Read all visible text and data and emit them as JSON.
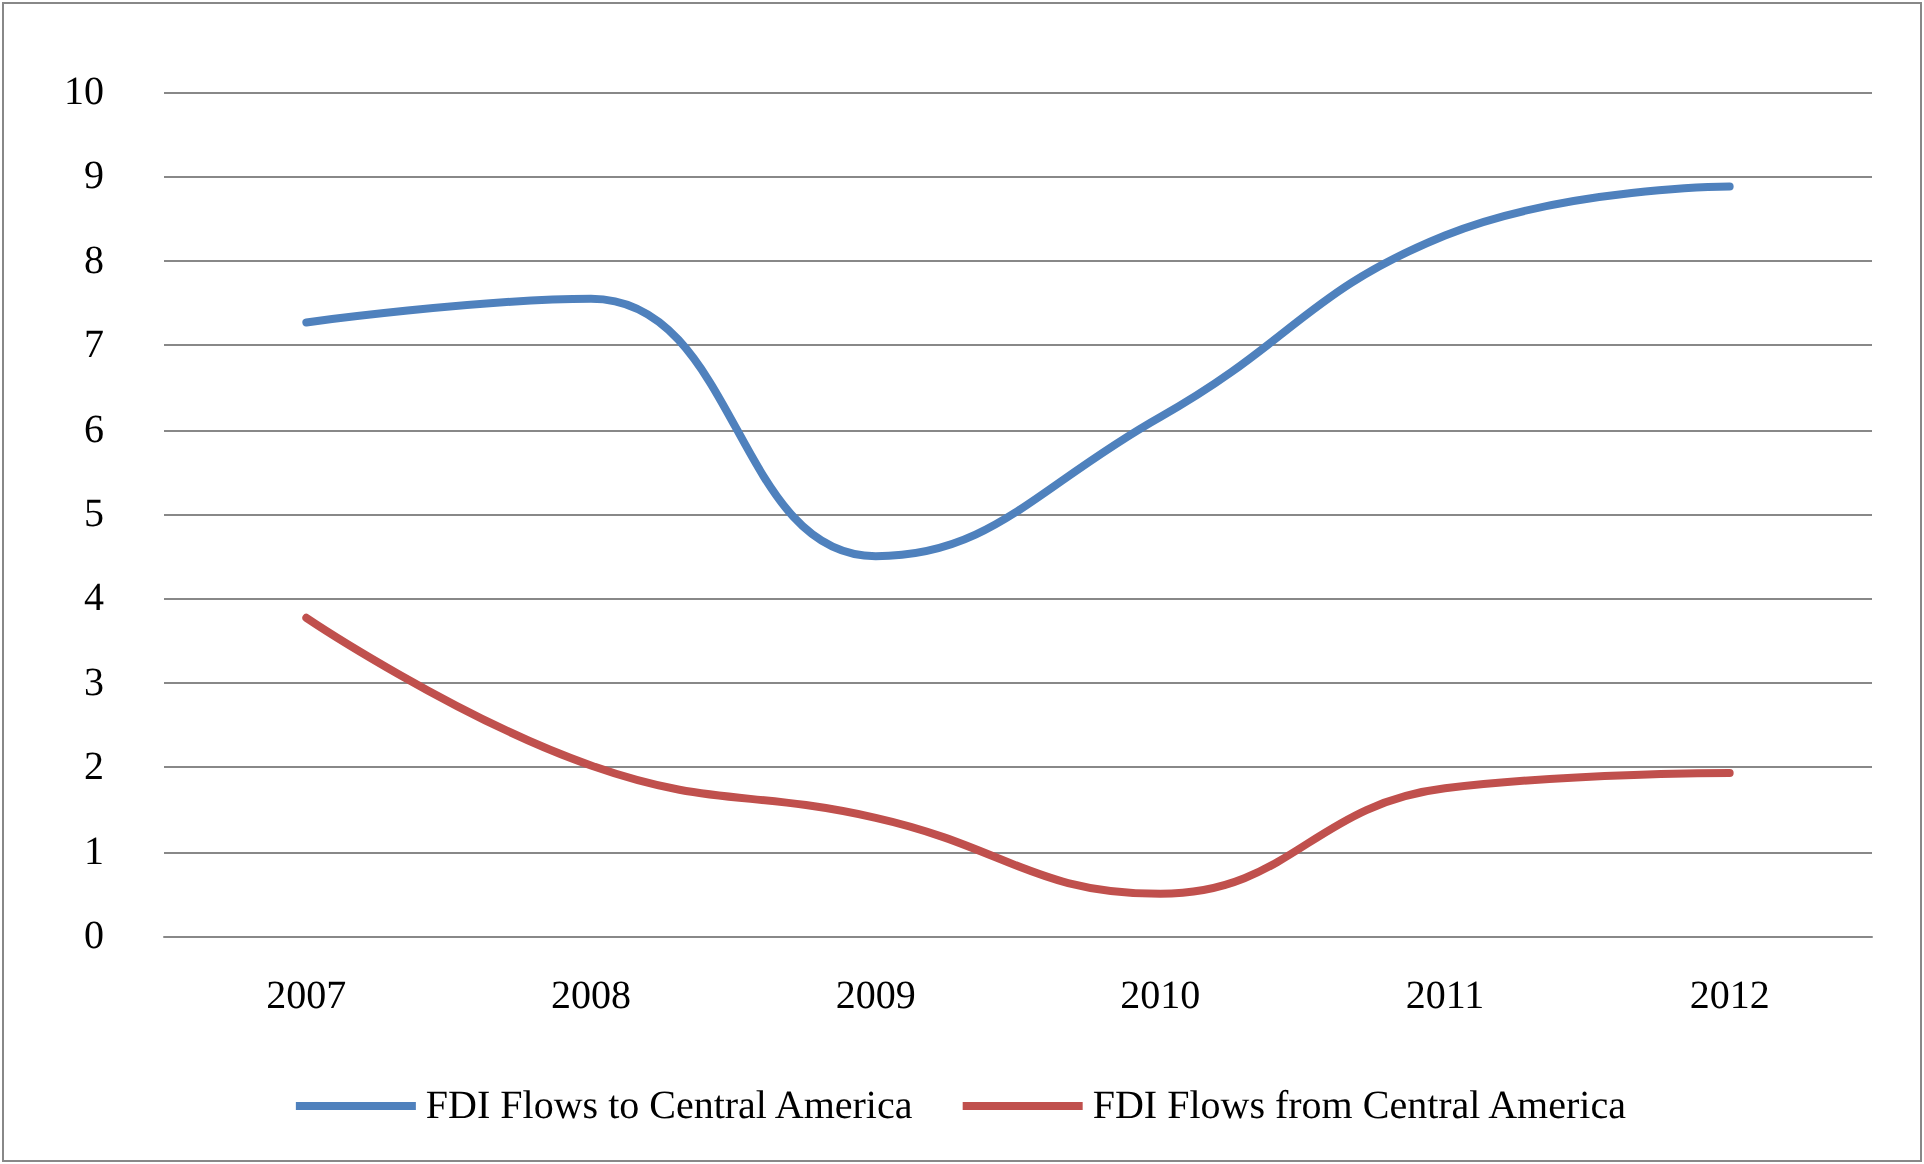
{
  "chart_data": {
    "type": "line",
    "categories": [
      "2007",
      "2008",
      "2009",
      "2010",
      "2011",
      "2012"
    ],
    "series": [
      {
        "name": "FDI Flows to Central America",
        "color": "#4f81bd",
        "values": [
          7.27,
          7.55,
          4.5,
          6.15,
          8.3,
          8.88
        ]
      },
      {
        "name": "FDI Flows from Central America",
        "color": "#c0504d",
        "values": [
          3.77,
          2.02,
          1.4,
          0.5,
          1.75,
          1.93
        ]
      }
    ],
    "ylim": [
      0,
      10
    ],
    "yticks": [
      0,
      1,
      2,
      3,
      4,
      5,
      6,
      7,
      8,
      9,
      10
    ],
    "grid": "y",
    "legend": "bottom",
    "marker": "none",
    "line_style": "solid"
  }
}
